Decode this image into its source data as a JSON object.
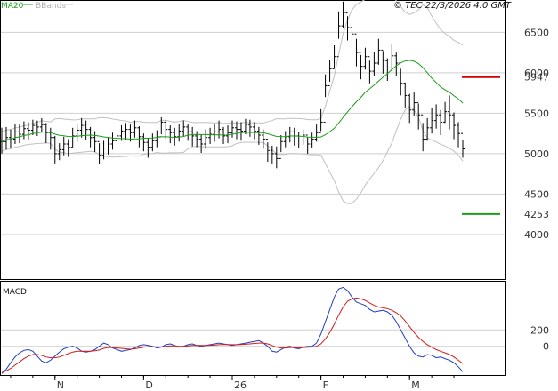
{
  "header": {
    "ma_label": "MA20",
    "bb_label": "BBands",
    "copyright": "© TEC 22/3/2026 4:0 GMT"
  },
  "colors": {
    "ma": "#1a9e1a",
    "bb": "#c0c0c0",
    "price": "#000000",
    "grid": "#cfcfcf",
    "resistance": "#d40000",
    "support": "#1a9e1a",
    "macd": "#1f3fbf",
    "signal": "#d01c1c"
  },
  "chart_data": [
    {
      "type": "ohlc",
      "name": "price",
      "y_axis": {
        "ticks": [
          4000,
          4500,
          5000,
          5500,
          6000,
          6500
        ],
        "tick_labels": [
          "4000",
          "4500",
          "5000",
          "5500",
          "6000",
          "6500"
        ],
        "range": [
          3450,
          6900
        ]
      },
      "x_labels": [
        "N",
        "D",
        "26",
        "F",
        "M"
      ],
      "x_label_index": [
        12,
        32,
        52,
        72,
        92
      ],
      "bars_count": 105,
      "levels": [
        {
          "label": "5947",
          "value": 5947,
          "color_key": "resistance"
        },
        {
          "label": "4253",
          "value": 4253,
          "color_key": "support"
        }
      ],
      "close": [
        5150,
        5200,
        5180,
        5270,
        5240,
        5310,
        5290,
        5350,
        5330,
        5360,
        5260,
        5200,
        5000,
        5050,
        5120,
        5080,
        5220,
        5290,
        5350,
        5300,
        5200,
        5150,
        4980,
        5070,
        5120,
        5160,
        5220,
        5280,
        5300,
        5260,
        5320,
        5210,
        5140,
        5080,
        5160,
        5210,
        5390,
        5300,
        5260,
        5210,
        5280,
        5330,
        5270,
        5220,
        5180,
        5120,
        5200,
        5240,
        5270,
        5300,
        5220,
        5260,
        5320,
        5300,
        5280,
        5360,
        5330,
        5280,
        5230,
        5180,
        5040,
        5000,
        4940,
        5150,
        5210,
        5270,
        5220,
        5170,
        5230,
        5120,
        5180,
        5260,
        5390,
        5840,
        6050,
        6200,
        6580,
        6740,
        6560,
        6480,
        6250,
        6080,
        6200,
        6020,
        6120,
        6280,
        6150,
        6060,
        6210,
        6120,
        5870,
        5720,
        5540,
        5630,
        5480,
        5180,
        5320,
        5410,
        5480,
        5390,
        5520,
        5480,
        5350,
        5250,
        5060
      ],
      "high": [
        5320,
        5330,
        5300,
        5370,
        5360,
        5400,
        5390,
        5420,
        5410,
        5440,
        5380,
        5320,
        5220,
        5130,
        5210,
        5180,
        5320,
        5370,
        5440,
        5410,
        5330,
        5280,
        5130,
        5160,
        5200,
        5260,
        5310,
        5350,
        5380,
        5360,
        5410,
        5340,
        5250,
        5190,
        5250,
        5290,
        5450,
        5410,
        5350,
        5320,
        5370,
        5410,
        5370,
        5330,
        5280,
        5240,
        5300,
        5320,
        5360,
        5410,
        5330,
        5350,
        5410,
        5400,
        5390,
        5430,
        5420,
        5390,
        5330,
        5300,
        5140,
        5100,
        5090,
        5230,
        5280,
        5330,
        5320,
        5270,
        5300,
        5210,
        5260,
        5360,
        5550,
        5980,
        6160,
        6340,
        6760,
        6880,
        6700,
        6620,
        6420,
        6220,
        6310,
        6150,
        6260,
        6420,
        6270,
        6180,
        6350,
        6250,
        6050,
        5880,
        5740,
        5760,
        5620,
        5380,
        5440,
        5570,
        5610,
        5540,
        5640,
        5720,
        5510,
        5390,
        5170
      ],
      "low": [
        5000,
        5050,
        5070,
        5120,
        5130,
        5180,
        5170,
        5230,
        5220,
        5260,
        5130,
        5050,
        4880,
        4920,
        4980,
        4960,
        5080,
        5150,
        5200,
        5170,
        5080,
        5020,
        4870,
        4930,
        4990,
        5050,
        5090,
        5160,
        5170,
        5150,
        5200,
        5080,
        5030,
        4950,
        5030,
        5080,
        5240,
        5180,
        5130,
        5100,
        5150,
        5210,
        5160,
        5090,
        5080,
        5010,
        5060,
        5120,
        5150,
        5190,
        5120,
        5130,
        5200,
        5180,
        5160,
        5240,
        5210,
        5180,
        5110,
        5060,
        4900,
        4880,
        4820,
        5020,
        5080,
        5140,
        5100,
        5070,
        5110,
        5000,
        5070,
        5150,
        5280,
        5700,
        5890,
        6050,
        6420,
        6560,
        6400,
        6320,
        6080,
        5920,
        6040,
        5870,
        5960,
        6100,
        5990,
        5900,
        6020,
        5960,
        5720,
        5560,
        5380,
        5460,
        5300,
        5030,
        5160,
        5250,
        5310,
        5230,
        5380,
        5300,
        5180,
        5080,
        4950
      ]
    },
    {
      "type": "line",
      "name": "MACD",
      "title": "MACD",
      "y_axis": {
        "ticks": [
          200,
          0
        ],
        "tick_labels": [
          "200",
          "0"
        ],
        "range": [
          -350,
          800
        ]
      },
      "series": [
        {
          "key": "macd",
          "values": [
            -330,
            -280,
            -200,
            -130,
            -80,
            -50,
            -40,
            -60,
            -120,
            -180,
            -200,
            -170,
            -120,
            -70,
            -30,
            -10,
            0,
            -20,
            -60,
            -70,
            -60,
            -40,
            0,
            40,
            20,
            -20,
            -40,
            -60,
            -50,
            -40,
            -20,
            10,
            20,
            10,
            0,
            -20,
            -10,
            20,
            30,
            10,
            -10,
            0,
            20,
            30,
            10,
            0,
            10,
            20,
            30,
            40,
            30,
            20,
            10,
            20,
            30,
            40,
            50,
            60,
            70,
            40,
            0,
            -60,
            -70,
            -40,
            -10,
            0,
            -20,
            -30,
            -10,
            0,
            0,
            40,
            150,
            300,
            450,
            600,
            700,
            720,
            680,
            600,
            540,
            520,
            500,
            450,
            420,
            430,
            440,
            420,
            380,
            300,
            200,
            100,
            0,
            -80,
            -120,
            -130,
            -100,
            -110,
            -140,
            -130,
            -150,
            -170,
            -200,
            -250,
            -310
          ]
        },
        {
          "key": "signal",
          "values": [
            -320,
            -300,
            -270,
            -230,
            -190,
            -150,
            -120,
            -100,
            -100,
            -110,
            -130,
            -140,
            -140,
            -130,
            -110,
            -90,
            -70,
            -60,
            -60,
            -60,
            -60,
            -55,
            -45,
            -25,
            -15,
            -15,
            -20,
            -25,
            -30,
            -35,
            -30,
            -20,
            -10,
            -5,
            -5,
            -8,
            -8,
            0,
            5,
            5,
            0,
            0,
            5,
            10,
            10,
            10,
            10,
            12,
            15,
            20,
            22,
            22,
            20,
            20,
            22,
            25,
            30,
            35,
            40,
            40,
            30,
            10,
            -10,
            -20,
            -20,
            -15,
            -15,
            -18,
            -15,
            -10,
            -8,
            0,
            30,
            90,
            170,
            270,
            380,
            480,
            550,
            580,
            590,
            580,
            560,
            530,
            500,
            480,
            470,
            460,
            440,
            410,
            370,
            310,
            240,
            170,
            110,
            60,
            20,
            -10,
            -40,
            -60,
            -80,
            -100,
            -130,
            -170,
            -210
          ]
        }
      ]
    }
  ]
}
